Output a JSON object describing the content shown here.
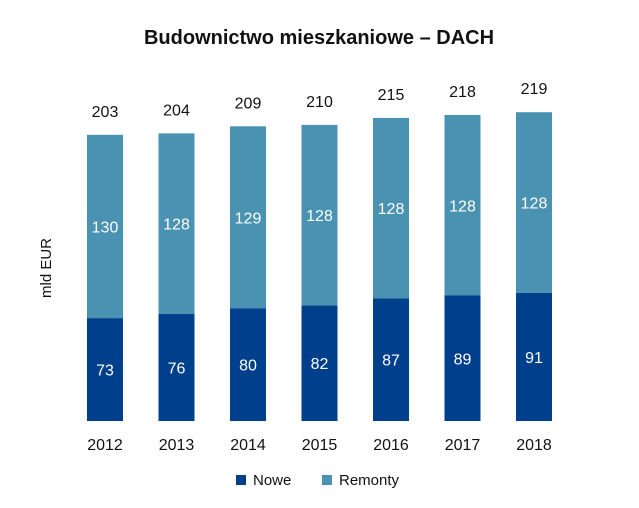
{
  "chart_data": {
    "type": "bar",
    "stacked": true,
    "title": "Budownictwo mieszkaniowe – DACH",
    "xlabel": "",
    "ylabel": "mld EUR",
    "categories": [
      "2012",
      "2013",
      "2014",
      "2015",
      "2016",
      "2017",
      "2018"
    ],
    "series": [
      {
        "name": "Nowe",
        "color": "#003f8c",
        "values": [
          73,
          76,
          80,
          82,
          87,
          89,
          91
        ]
      },
      {
        "name": "Remonty",
        "color": "#4a92b2",
        "values": [
          130,
          128,
          129,
          128,
          128,
          128,
          128
        ]
      }
    ],
    "totals": [
      203,
      204,
      209,
      210,
      215,
      218,
      219
    ],
    "grid": false,
    "legend": "bottom"
  }
}
